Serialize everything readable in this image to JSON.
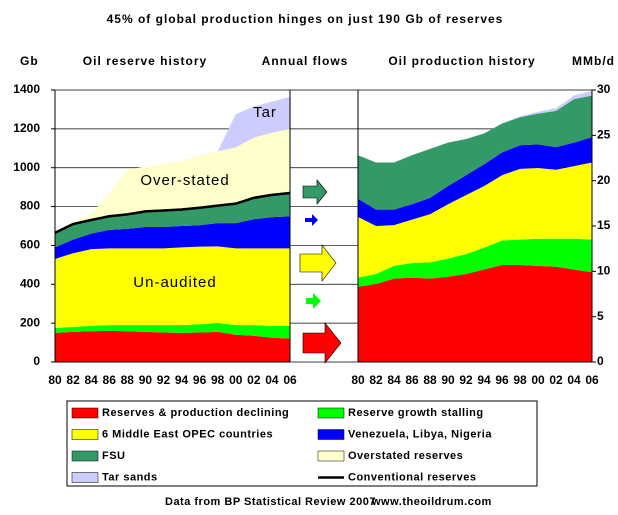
{
  "title": "45% of global production hinges on just 190 Gb of reserves",
  "headers": [
    "Gb",
    "Oil reserve history",
    "Annual flows",
    "Oil production history",
    "MMb/d"
  ],
  "footer": [
    "Data from BP Statistical Review 2007",
    "www.theoildrum.com"
  ],
  "chart_data": [
    {
      "type": "stacked_area",
      "title": "Oil reserve history",
      "y_label": "Gb",
      "categories": [
        "80",
        "82",
        "84",
        "86",
        "88",
        "90",
        "92",
        "94",
        "96",
        "98",
        "00",
        "02",
        "04",
        "06"
      ],
      "ylim": [
        0,
        1400
      ],
      "yticks": [
        0,
        200,
        400,
        600,
        800,
        1000,
        1200,
        1400
      ],
      "grid": true,
      "series": [
        {
          "name": "Reserves & production declining",
          "color": "#ff0000",
          "values": [
            150,
            155,
            158,
            160,
            158,
            155,
            152,
            150,
            152,
            155,
            140,
            135,
            125,
            120
          ]
        },
        {
          "name": "Reserve growth stalling",
          "color": "#00ff00",
          "values": [
            25,
            25,
            28,
            30,
            32,
            35,
            38,
            40,
            42,
            45,
            50,
            55,
            60,
            65
          ]
        },
        {
          "name": "6 Middle East OPEC countries",
          "color": "#ffff00",
          "values": [
            355,
            380,
            395,
            395,
            395,
            395,
            395,
            400,
            400,
            395,
            395,
            395,
            400,
            400
          ]
        },
        {
          "name": "Venezuela, Libya, Nigeria",
          "color": "#0000ff",
          "values": [
            60,
            70,
            80,
            95,
            100,
            110,
            110,
            110,
            110,
            120,
            130,
            150,
            160,
            165
          ]
        },
        {
          "name": "FSU",
          "color": "#339966",
          "values": [
            75,
            80,
            70,
            70,
            75,
            80,
            85,
            85,
            90,
            90,
            100,
            110,
            115,
            120
          ]
        },
        {
          "name": "Overstated reserves",
          "color": "#ffffcc",
          "values": [
            0,
            10,
            30,
            120,
            230,
            230,
            240,
            250,
            270,
            280,
            290,
            310,
            320,
            330
          ]
        },
        {
          "name": "Tar sands",
          "color": "#ccccff",
          "values": [
            0,
            0,
            0,
            0,
            0,
            0,
            0,
            0,
            0,
            0,
            170,
            160,
            160,
            165
          ]
        }
      ],
      "lines": [
        {
          "name": "Conventional reserves",
          "color": "#000000"
        }
      ],
      "annotations": [
        "Tar",
        "Over-stated",
        "Un-audited"
      ]
    },
    {
      "type": "stacked_area",
      "title": "Oil production history",
      "y_label": "MMb/d",
      "categories": [
        "80",
        "82",
        "84",
        "86",
        "88",
        "90",
        "92",
        "94",
        "96",
        "98",
        "00",
        "02",
        "04",
        "06"
      ],
      "y2lim": [
        0,
        30
      ],
      "y2ticks": [
        0,
        5,
        10,
        15,
        20,
        25,
        30
      ],
      "series": [
        {
          "name": "Reserves & production declining",
          "color": "#ff0000",
          "axis": "y2",
          "values": [
            8.3,
            8.6,
            9.2,
            9.3,
            9.2,
            9.4,
            9.7,
            10.2,
            10.7,
            10.7,
            10.6,
            10.5,
            10.2,
            9.9
          ]
        },
        {
          "name": "Reserve growth stalling",
          "color": "#00ff00",
          "axis": "y2",
          "values": [
            1,
            1.1,
            1.4,
            1.6,
            1.8,
            2.0,
            2.2,
            2.4,
            2.7,
            2.8,
            3.0,
            3.1,
            3.4,
            3.6
          ]
        },
        {
          "name": "6 Middle East OPEC countries",
          "color": "#ffff00",
          "axis": "y2",
          "values": [
            6.7,
            5.3,
            4.5,
            4.8,
            5.3,
            6.0,
            6.5,
            6.8,
            7.2,
            7.8,
            7.8,
            7.6,
            8.0,
            8.5
          ]
        },
        {
          "name": "Venezuela, Libya, Nigeria",
          "color": "#0000ff",
          "axis": "y2",
          "values": [
            2.0,
            1.8,
            1.7,
            1.7,
            1.8,
            2.0,
            2.2,
            2.4,
            2.5,
            2.6,
            2.6,
            2.5,
            2.6,
            2.8
          ]
        },
        {
          "name": "FSU",
          "color": "#339966",
          "axis": "y2",
          "values": [
            4.8,
            5.2,
            5.2,
            5.4,
            5.4,
            4.8,
            4.0,
            3.4,
            3.2,
            3.1,
            3.4,
            4.0,
            4.8,
            4.6
          ]
        },
        {
          "name": "Tar sands",
          "color": "#ccccff",
          "axis": "y2",
          "values": [
            0,
            0,
            0,
            0,
            0,
            0,
            0,
            0,
            0,
            0.1,
            0.2,
            0.3,
            0.4,
            0.5
          ]
        }
      ]
    }
  ]
}
